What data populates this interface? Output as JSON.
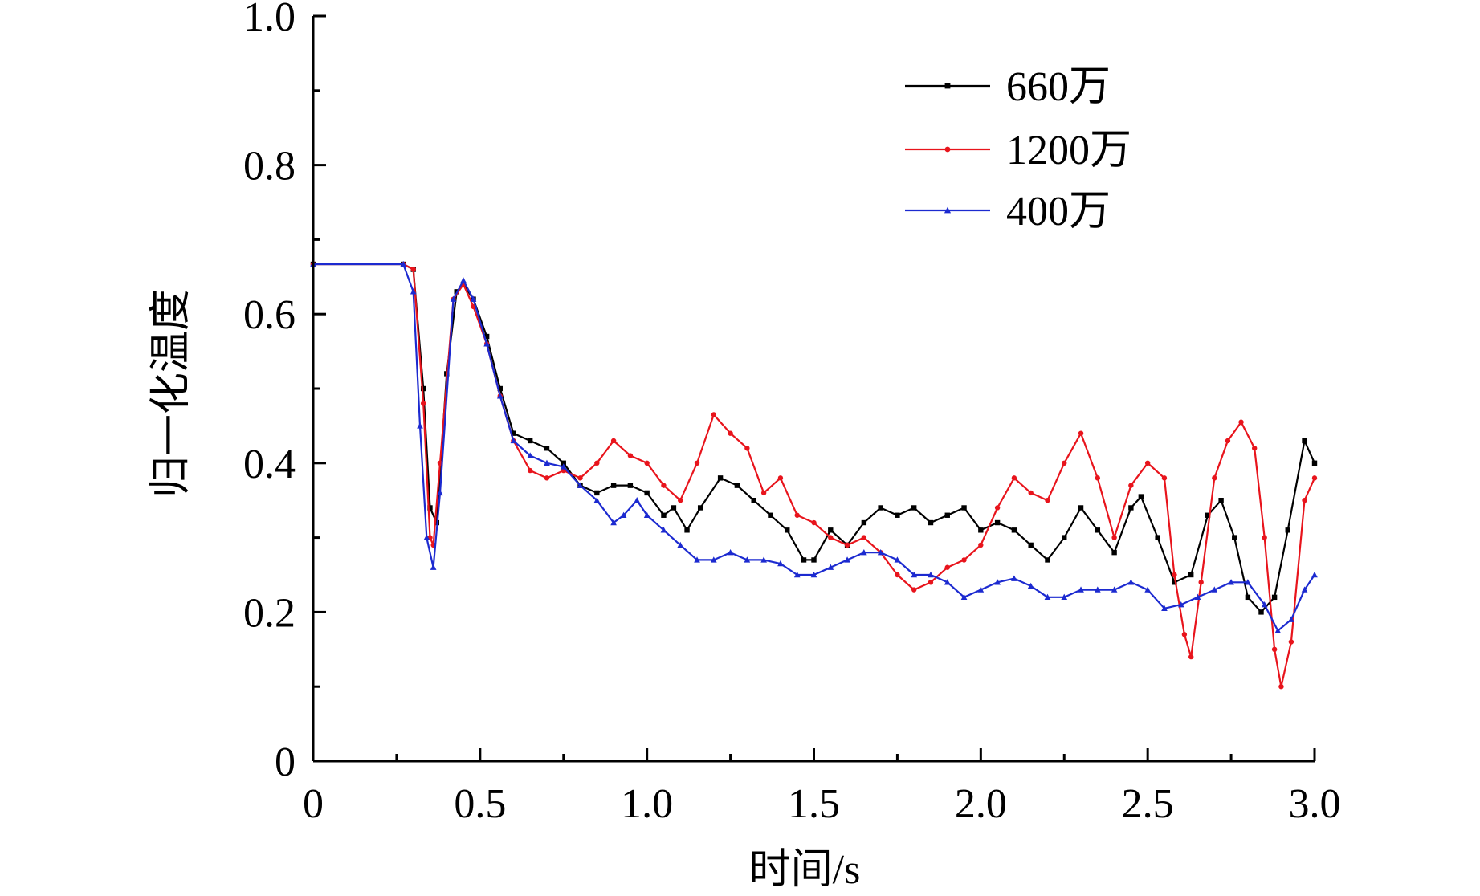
{
  "chart_data": {
    "type": "line",
    "title": "",
    "xlabel": "时间/s",
    "ylabel": "归一化温度",
    "xlim": [
      0,
      3.0
    ],
    "ylim": [
      0,
      1.0
    ],
    "x_ticks": [
      0,
      0.5,
      1.0,
      1.5,
      2.0,
      2.5,
      3.0
    ],
    "x_tick_labels": [
      "0",
      "0.5",
      "1.0",
      "1.5",
      "2.0",
      "2.5",
      "3.0"
    ],
    "y_ticks": [
      0,
      0.2,
      0.4,
      0.6,
      0.8,
      1.0
    ],
    "y_tick_labels": [
      "0",
      "0.2",
      "0.4",
      "0.6",
      "0.8",
      "1.0"
    ],
    "grid": false,
    "legend_position": "top-right",
    "series": [
      {
        "name": "660万",
        "color": "#000000",
        "marker": "square",
        "x": [
          0,
          0.27,
          0.3,
          0.33,
          0.35,
          0.37,
          0.4,
          0.43,
          0.45,
          0.48,
          0.52,
          0.56,
          0.6,
          0.65,
          0.7,
          0.75,
          0.8,
          0.85,
          0.9,
          0.95,
          1.0,
          1.05,
          1.08,
          1.12,
          1.16,
          1.22,
          1.27,
          1.32,
          1.37,
          1.42,
          1.47,
          1.5,
          1.55,
          1.6,
          1.65,
          1.7,
          1.75,
          1.8,
          1.85,
          1.9,
          1.95,
          2.0,
          2.05,
          2.1,
          2.15,
          2.2,
          2.25,
          2.3,
          2.35,
          2.4,
          2.45,
          2.48,
          2.53,
          2.58,
          2.63,
          2.68,
          2.72,
          2.76,
          2.8,
          2.84,
          2.88,
          2.92,
          2.97,
          3.0
        ],
        "y": [
          0.667,
          0.667,
          0.66,
          0.5,
          0.34,
          0.32,
          0.52,
          0.63,
          0.64,
          0.62,
          0.57,
          0.5,
          0.44,
          0.43,
          0.42,
          0.4,
          0.37,
          0.36,
          0.37,
          0.37,
          0.36,
          0.33,
          0.34,
          0.31,
          0.34,
          0.38,
          0.37,
          0.35,
          0.33,
          0.31,
          0.27,
          0.27,
          0.31,
          0.29,
          0.32,
          0.34,
          0.33,
          0.34,
          0.32,
          0.33,
          0.34,
          0.31,
          0.32,
          0.31,
          0.29,
          0.27,
          0.3,
          0.34,
          0.31,
          0.28,
          0.34,
          0.355,
          0.3,
          0.24,
          0.25,
          0.33,
          0.35,
          0.3,
          0.22,
          0.2,
          0.22,
          0.31,
          0.43,
          0.4
        ]
      },
      {
        "name": "1200万",
        "color": "#e8141c",
        "marker": "circle",
        "x": [
          0,
          0.27,
          0.3,
          0.33,
          0.35,
          0.36,
          0.38,
          0.42,
          0.45,
          0.48,
          0.52,
          0.56,
          0.6,
          0.65,
          0.7,
          0.75,
          0.8,
          0.85,
          0.9,
          0.95,
          1.0,
          1.05,
          1.1,
          1.15,
          1.2,
          1.25,
          1.3,
          1.35,
          1.4,
          1.45,
          1.5,
          1.55,
          1.6,
          1.65,
          1.7,
          1.75,
          1.8,
          1.85,
          1.9,
          1.95,
          2.0,
          2.05,
          2.1,
          2.15,
          2.2,
          2.25,
          2.3,
          2.35,
          2.4,
          2.45,
          2.5,
          2.55,
          2.58,
          2.61,
          2.63,
          2.66,
          2.7,
          2.74,
          2.78,
          2.82,
          2.85,
          2.88,
          2.9,
          2.93,
          2.97,
          3.0
        ],
        "y": [
          0.667,
          0.667,
          0.66,
          0.48,
          0.3,
          0.29,
          0.4,
          0.62,
          0.64,
          0.61,
          0.56,
          0.49,
          0.43,
          0.39,
          0.38,
          0.39,
          0.38,
          0.4,
          0.43,
          0.41,
          0.4,
          0.37,
          0.35,
          0.4,
          0.465,
          0.44,
          0.42,
          0.36,
          0.38,
          0.33,
          0.32,
          0.3,
          0.29,
          0.3,
          0.28,
          0.25,
          0.23,
          0.24,
          0.26,
          0.27,
          0.29,
          0.34,
          0.38,
          0.36,
          0.35,
          0.4,
          0.44,
          0.38,
          0.3,
          0.37,
          0.4,
          0.38,
          0.25,
          0.17,
          0.14,
          0.24,
          0.38,
          0.43,
          0.455,
          0.42,
          0.3,
          0.15,
          0.1,
          0.16,
          0.35,
          0.38
        ]
      },
      {
        "name": "400万",
        "color": "#1c2ad0",
        "marker": "triangle",
        "x": [
          0,
          0.27,
          0.3,
          0.32,
          0.34,
          0.36,
          0.38,
          0.42,
          0.45,
          0.48,
          0.52,
          0.56,
          0.6,
          0.65,
          0.7,
          0.75,
          0.8,
          0.85,
          0.9,
          0.93,
          0.97,
          1.0,
          1.05,
          1.1,
          1.15,
          1.2,
          1.25,
          1.3,
          1.35,
          1.4,
          1.45,
          1.5,
          1.55,
          1.6,
          1.65,
          1.7,
          1.75,
          1.8,
          1.85,
          1.9,
          1.95,
          2.0,
          2.05,
          2.1,
          2.15,
          2.2,
          2.25,
          2.3,
          2.35,
          2.4,
          2.45,
          2.5,
          2.55,
          2.6,
          2.65,
          2.7,
          2.75,
          2.8,
          2.85,
          2.89,
          2.93,
          2.97,
          3.0
        ],
        "y": [
          0.667,
          0.667,
          0.63,
          0.45,
          0.3,
          0.26,
          0.36,
          0.62,
          0.645,
          0.62,
          0.56,
          0.49,
          0.43,
          0.41,
          0.4,
          0.395,
          0.37,
          0.35,
          0.32,
          0.33,
          0.35,
          0.33,
          0.31,
          0.29,
          0.27,
          0.27,
          0.28,
          0.27,
          0.27,
          0.265,
          0.25,
          0.25,
          0.26,
          0.27,
          0.28,
          0.28,
          0.27,
          0.25,
          0.25,
          0.24,
          0.22,
          0.23,
          0.24,
          0.245,
          0.235,
          0.22,
          0.22,
          0.23,
          0.23,
          0.23,
          0.24,
          0.23,
          0.205,
          0.21,
          0.22,
          0.23,
          0.24,
          0.24,
          0.21,
          0.175,
          0.19,
          0.23,
          0.25
        ]
      }
    ]
  }
}
